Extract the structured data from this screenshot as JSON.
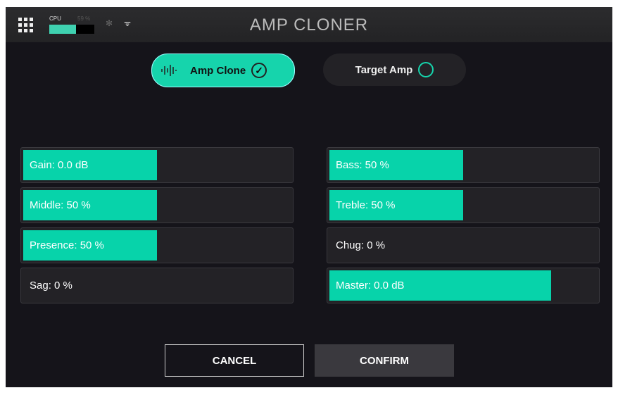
{
  "header": {
    "title": "AMP CLONER",
    "cpu_label": "CPU",
    "cpu_value": "59 %",
    "cpu_percent": 59,
    "icons": [
      "apps-grid-icon",
      "bluetooth-icon",
      "wifi-icon"
    ]
  },
  "tabs": [
    {
      "label": "Amp Clone",
      "selected": true,
      "icon": "waveform-icon"
    },
    {
      "label": "Target Amp",
      "selected": false
    }
  ],
  "accent": "#07d3aa",
  "sliders_left": [
    {
      "label": "Gain: 0.0 dB",
      "fill": 50
    },
    {
      "label": "Middle: 50 %",
      "fill": 50
    },
    {
      "label": "Presence: 50 %",
      "fill": 50
    },
    {
      "label": "Sag: 0 %",
      "fill": 0
    }
  ],
  "sliders_right": [
    {
      "label": "Bass: 50 %",
      "fill": 50
    },
    {
      "label": "Treble: 50 %",
      "fill": 50
    },
    {
      "label": "Chug: 0 %",
      "fill": 0
    },
    {
      "label": "Master: 0.0 dB",
      "fill": 83
    }
  ],
  "buttons": {
    "cancel": "CANCEL",
    "confirm": "CONFIRM"
  }
}
